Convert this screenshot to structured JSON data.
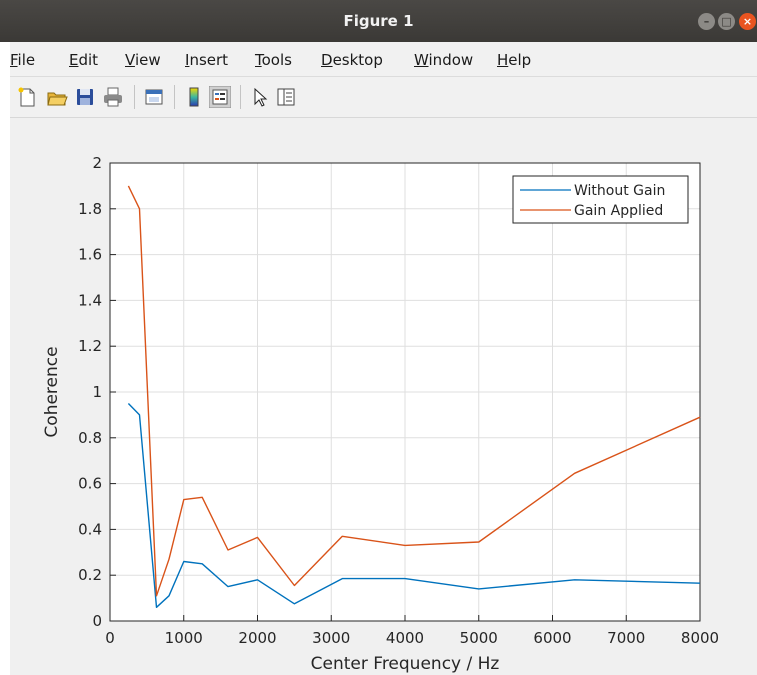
{
  "window": {
    "title": "Figure 1"
  },
  "menu": {
    "items": [
      "File",
      "Edit",
      "View",
      "Insert",
      "Tools",
      "Desktop",
      "Window",
      "Help"
    ]
  },
  "toolbar": {
    "icons": [
      "new-figure-icon",
      "open-file-icon",
      "save-icon",
      "print-icon",
      "link-plot-icon",
      "colorbar-icon",
      "legend-icon",
      "pointer-icon",
      "property-inspector-icon"
    ]
  },
  "colors": {
    "without_gain": "#0072bd",
    "gain_applied": "#d95319"
  },
  "chart_data": {
    "type": "line",
    "title": "",
    "xlabel": "Center Frequency / Hz",
    "ylabel": "Coherence",
    "xlim": [
      0,
      8000
    ],
    "ylim": [
      0,
      2
    ],
    "xticks": [
      "0",
      "1000",
      "2000",
      "3000",
      "4000",
      "5000",
      "6000",
      "7000",
      "8000"
    ],
    "yticks": [
      "0",
      "0.2",
      "0.4",
      "0.6",
      "0.8",
      "1",
      "1.2",
      "1.4",
      "1.6",
      "1.8",
      "2"
    ],
    "grid": true,
    "legend_position": "top-right",
    "series": [
      {
        "name": "Without Gain",
        "x": [
          250,
          400,
          630,
          800,
          1000,
          1250,
          1600,
          2000,
          2500,
          3150,
          4000,
          5000,
          6300,
          8000
        ],
        "y": [
          0.95,
          0.9,
          0.06,
          0.11,
          0.26,
          0.25,
          0.15,
          0.18,
          0.075,
          0.185,
          0.185,
          0.14,
          0.18,
          0.165
        ]
      },
      {
        "name": "Gain Applied",
        "x": [
          250,
          400,
          630,
          800,
          1000,
          1250,
          1600,
          2000,
          2500,
          3150,
          4000,
          5000,
          6300,
          8000
        ],
        "y": [
          1.9,
          1.8,
          0.11,
          0.27,
          0.53,
          0.54,
          0.31,
          0.365,
          0.155,
          0.37,
          0.33,
          0.345,
          0.645,
          0.89
        ]
      }
    ]
  }
}
